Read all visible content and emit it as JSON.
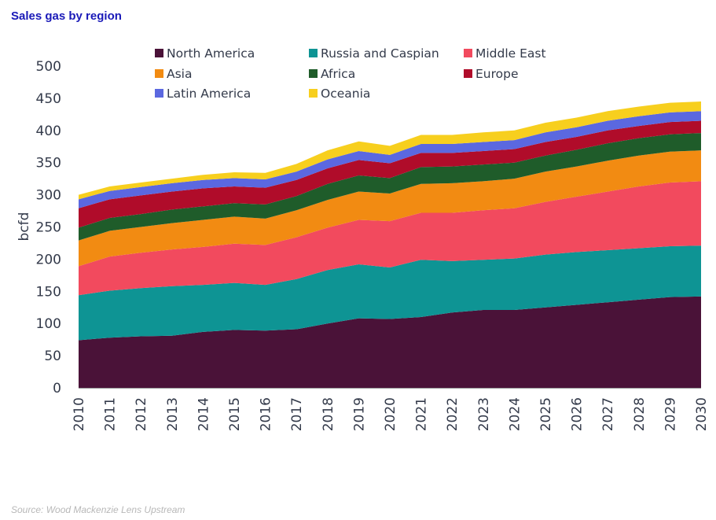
{
  "title": "Sales gas by region",
  "source": "Source: Wood Mackenzie Lens Upstream",
  "chart_data": {
    "type": "area",
    "stacked": true,
    "title": "Sales gas by region",
    "ylabel": "bcfd",
    "xlabel": "",
    "ylim": [
      0,
      500
    ],
    "yticks": [
      0,
      50,
      100,
      150,
      200,
      250,
      300,
      350,
      400,
      450,
      500
    ],
    "x": [
      "2010",
      "2011",
      "2012",
      "2013",
      "2014",
      "2015",
      "2016",
      "2017",
      "2018",
      "2019",
      "2020",
      "2021",
      "2022",
      "2023",
      "2024",
      "2025",
      "2026",
      "2027",
      "2028",
      "2029",
      "2030"
    ],
    "grid": false,
    "legend_position": "top",
    "series": [
      {
        "name": "North America",
        "color": "#4a1238",
        "values": [
          74,
          78,
          80,
          81,
          87,
          90,
          89,
          91,
          100,
          108,
          107,
          110,
          117,
          121,
          121,
          125,
          129,
          133,
          137,
          141,
          142
        ]
      },
      {
        "name": "Russia and Caspian",
        "color": "#0e9494",
        "values": [
          70,
          73,
          75,
          77,
          73,
          73,
          71,
          78,
          83,
          84,
          80,
          89,
          80,
          78,
          80,
          82,
          82,
          81,
          80,
          79,
          79
        ]
      },
      {
        "name": "Middle East",
        "color": "#f24a5e",
        "values": [
          45,
          53,
          55,
          57,
          59,
          61,
          62,
          65,
          66,
          69,
          72,
          73,
          75,
          77,
          78,
          82,
          86,
          91,
          96,
          99,
          100
        ]
      },
      {
        "name": "Asia",
        "color": "#f28b12",
        "values": [
          40,
          40,
          40,
          41,
          42,
          42,
          41,
          42,
          43,
          44,
          43,
          45,
          46,
          45,
          46,
          47,
          47,
          48,
          48,
          48,
          48
        ]
      },
      {
        "name": "Africa",
        "color": "#1f5c2a",
        "values": [
          20,
          20,
          20,
          21,
          21,
          21,
          22,
          22,
          25,
          25,
          24,
          26,
          26,
          26,
          25,
          25,
          26,
          27,
          27,
          27,
          27
        ]
      },
      {
        "name": "Europe",
        "color": "#b00c2a",
        "values": [
          30,
          29,
          29,
          28,
          28,
          26,
          26,
          25,
          24,
          24,
          23,
          22,
          21,
          21,
          21,
          21,
          20,
          20,
          19,
          19,
          19
        ]
      },
      {
        "name": "Latin America",
        "color": "#5b68e0",
        "values": [
          14,
          13,
          13,
          13,
          13,
          13,
          13,
          13,
          14,
          14,
          13,
          14,
          14,
          14,
          14,
          15,
          15,
          15,
          15,
          15,
          15
        ]
      },
      {
        "name": "Oceania",
        "color": "#f7cf1e",
        "values": [
          7,
          7,
          7,
          7,
          8,
          9,
          10,
          12,
          14,
          15,
          14,
          14,
          14,
          15,
          15,
          15,
          15,
          15,
          15,
          15,
          15
        ]
      }
    ]
  }
}
